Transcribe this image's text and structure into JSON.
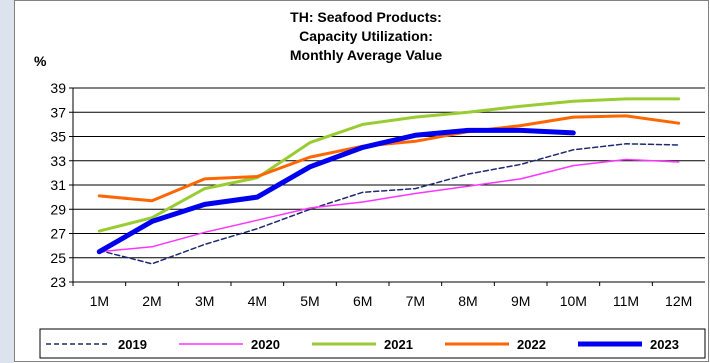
{
  "chart_data": {
    "type": "line",
    "title_lines": [
      "TH: Seafood Products:",
      "Capacity Utilization:",
      "Monthly Average Value"
    ],
    "ylabel": "%",
    "xlabel": "",
    "categories": [
      "1M",
      "2M",
      "3M",
      "4M",
      "5M",
      "6M",
      "7M",
      "8M",
      "9M",
      "10M",
      "11M",
      "12M"
    ],
    "ylim": [
      23,
      39
    ],
    "yticks": [
      23,
      25,
      27,
      29,
      31,
      33,
      35,
      37,
      39
    ],
    "grid": "horizontal",
    "legend_position": "bottom",
    "series": [
      {
        "name": "2019",
        "color": "#1f2a6e",
        "style": "dashed",
        "values": [
          25.6,
          24.5,
          26.1,
          27.4,
          29.0,
          30.4,
          30.7,
          31.9,
          32.7,
          33.9,
          34.4,
          34.3
        ]
      },
      {
        "name": "2020",
        "color": "#ff33ff",
        "style": "solid",
        "values": [
          25.5,
          25.9,
          27.1,
          28.1,
          29.1,
          29.6,
          30.3,
          30.9,
          31.5,
          32.6,
          33.1,
          32.9
        ]
      },
      {
        "name": "2021",
        "color": "#99cc33",
        "style": "solid",
        "values": [
          27.2,
          28.3,
          30.7,
          31.6,
          34.5,
          36.0,
          36.6,
          37.0,
          37.5,
          37.9,
          38.1,
          38.1
        ]
      },
      {
        "name": "2022",
        "color": "#ff6600",
        "style": "solid",
        "values": [
          30.1,
          29.7,
          31.5,
          31.7,
          33.3,
          34.2,
          34.6,
          35.4,
          35.9,
          36.6,
          36.7,
          36.1
        ]
      },
      {
        "name": "2023",
        "color": "#0000ee",
        "style": "solid",
        "values": [
          25.5,
          28.0,
          29.4,
          30.0,
          32.5,
          34.1,
          35.1,
          35.5,
          35.5,
          35.3,
          null,
          null
        ]
      }
    ]
  }
}
